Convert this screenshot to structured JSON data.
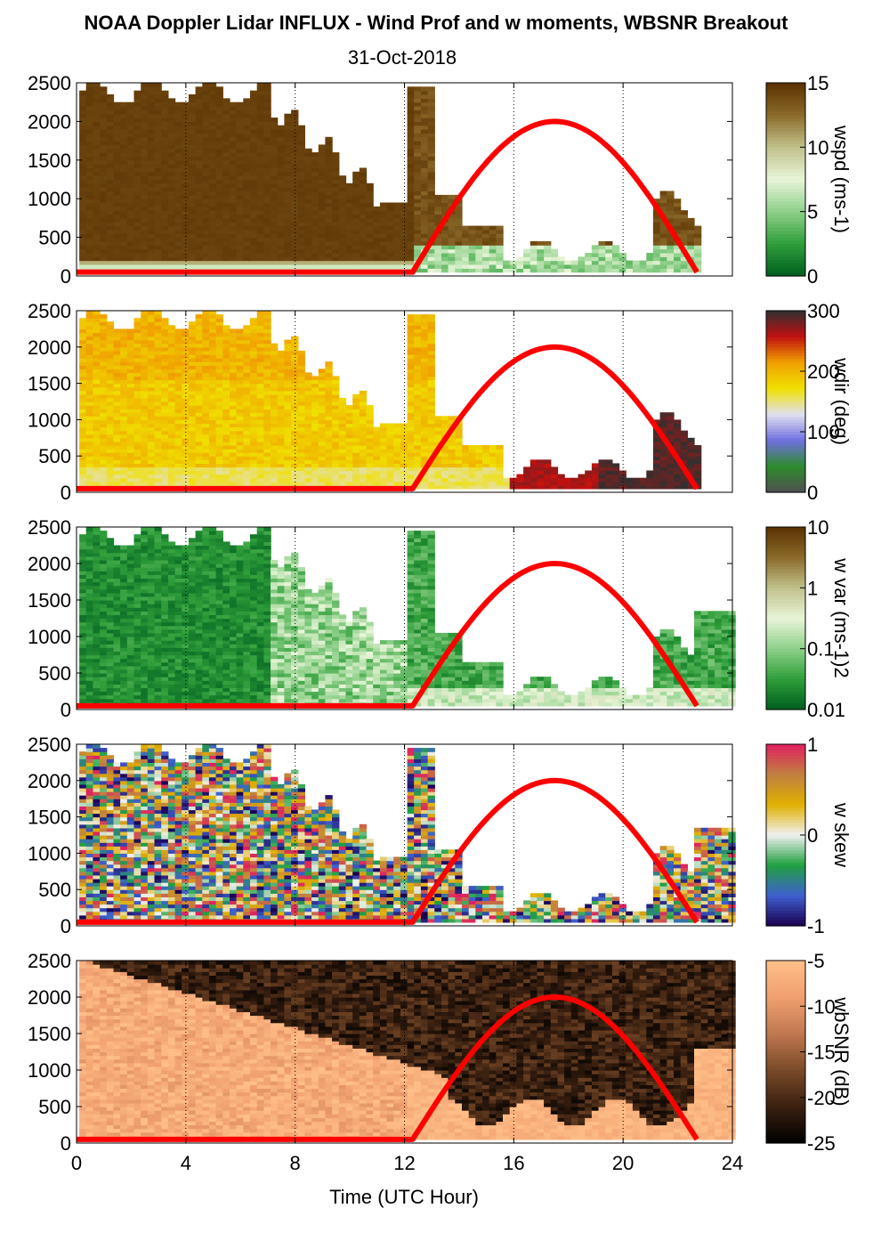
{
  "title": "NOAA Doppler Lidar INFLUX - Wind Prof and w moments, WBSNR Breakout",
  "subtitle": "31-Oct-2018",
  "chart_data": {
    "type": "heatmap",
    "xlabel": "Time (UTC Hour)",
    "xlim": [
      0,
      24
    ],
    "xticks": [
      "0",
      "4",
      "8",
      "12",
      "16",
      "20",
      "24"
    ],
    "xgrid_hours": [
      4,
      8,
      12,
      16,
      20,
      24
    ],
    "ylim": [
      0,
      2500
    ],
    "yticks": [
      "0",
      "500",
      "1000",
      "1500",
      "2000",
      "2500"
    ],
    "solar_curve": {
      "color": "#ff0000",
      "zero_level": 50,
      "rise_hour": 12.3,
      "set_hour": 22.7,
      "peak_hour": 17.5,
      "peak_height": 2000
    },
    "panels": [
      {
        "name": "wspd",
        "colorbar_label": "wspd (ms-1)",
        "colorbar_ticks": [
          "15",
          "10",
          "5",
          "0"
        ],
        "colormap": [
          "#005f20",
          "#2f9e3a",
          "#8fd08a",
          "#e8f5d8",
          "#c0c08a",
          "#8a6a2a",
          "#5a3000"
        ]
      },
      {
        "name": "wdir",
        "colorbar_label": "wdir (deg)",
        "colorbar_ticks": [
          "300",
          "200",
          "100",
          "0"
        ],
        "colormap": [
          "#505050",
          "#2e8b2e",
          "#7070e0",
          "#e0e0f0",
          "#f0e000",
          "#f0a000",
          "#c01010",
          "#303030"
        ]
      },
      {
        "name": "wvar",
        "colorbar_label": "w var (ms-1)2",
        "colorbar_ticks": [
          "10",
          "1",
          "0.1",
          "0.01"
        ],
        "colormap": [
          "#005f20",
          "#2f9e3a",
          "#8fd08a",
          "#e8f5d8",
          "#c0c08a",
          "#8a6a2a",
          "#5a3000"
        ]
      },
      {
        "name": "wskew",
        "colorbar_label": "w skew",
        "colorbar_ticks": [
          "1",
          "0",
          "-1"
        ],
        "colormap": [
          "#1a0050",
          "#4060d0",
          "#20a040",
          "#f0f0f0",
          "#e0b000",
          "#c08040",
          "#e02060"
        ]
      },
      {
        "name": "wbsnr",
        "colorbar_label": "wbSNR (dB)",
        "colorbar_ticks": [
          "-5",
          "-10",
          "-15",
          "-20",
          "-25"
        ],
        "colormap": [
          "#000000",
          "#3a2010",
          "#7a4a28",
          "#c07850",
          "#f0a070",
          "#ffbf88"
        ]
      }
    ]
  }
}
